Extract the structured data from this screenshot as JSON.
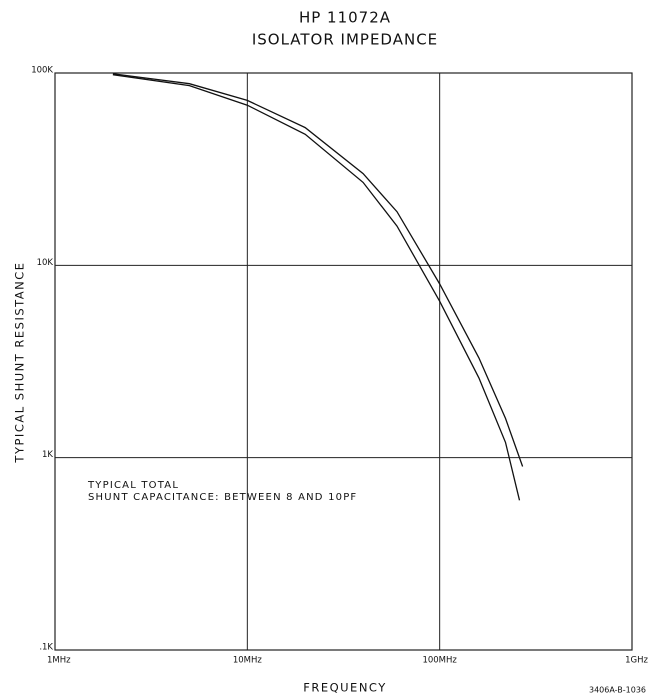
{
  "chart_data": {
    "type": "line",
    "title": "HP 11072A",
    "subtitle": "ISOLATOR IMPEDANCE",
    "xlabel": "FREQUENCY",
    "ylabel": "TYPICAL SHUNT RESISTANCE",
    "annotations": [
      "TYPICAL TOTAL",
      "SHUNT CAPACITANCE: BETWEEN 8 AND 10PF"
    ],
    "footnote": "3406A-B-1036",
    "xscale": "log",
    "yscale": "log",
    "grid": true,
    "xlim": [
      1000000,
      1000000000
    ],
    "ylim": [
      100,
      100000
    ],
    "xticks": [
      {
        "value": 1000000,
        "label": "1MHz"
      },
      {
        "value": 10000000,
        "label": "10MHz"
      },
      {
        "value": 100000000,
        "label": "100MHz"
      },
      {
        "value": 1000000000,
        "label": "1GHz"
      }
    ],
    "yticks": [
      {
        "value": 100,
        "label": ".1K"
      },
      {
        "value": 1000,
        "label": "1K"
      },
      {
        "value": 10000,
        "label": "10K"
      },
      {
        "value": 100000,
        "label": "100K"
      }
    ],
    "series": [
      {
        "color": "#111111",
        "x": [
          2000000,
          5000000,
          10000000,
          20000000,
          40000000,
          60000000,
          100000000,
          160000000,
          220000000,
          270000000
        ],
        "values": [
          99000,
          88000,
          72000,
          52000,
          30000,
          19000,
          8000,
          3300,
          1600,
          900
        ]
      },
      {
        "color": "#111111",
        "x": [
          2000000,
          5000000,
          10000000,
          20000000,
          40000000,
          60000000,
          100000000,
          160000000,
          220000000,
          260000000
        ],
        "values": [
          98000,
          86000,
          68000,
          48000,
          27000,
          16000,
          6500,
          2600,
          1200,
          600
        ]
      }
    ]
  }
}
